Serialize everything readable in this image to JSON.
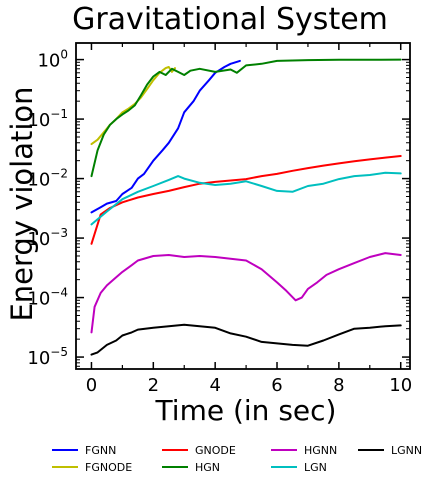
{
  "chart_data": {
    "type": "line",
    "title": "Gravitational System",
    "xlabel": "Time (in sec)",
    "ylabel": "Energy violation",
    "xlim": [
      -0.5,
      10.3
    ],
    "ylim": [
      6.3e-06,
      1.9
    ],
    "yscale": "log",
    "xticks": [
      0,
      2,
      4,
      6,
      8,
      10
    ],
    "xtick_labels": [
      "0",
      "2",
      "4",
      "6",
      "8",
      "10"
    ],
    "yticks": [
      1e-05,
      0.0001,
      0.001,
      0.01,
      0.1,
      1
    ],
    "ytick_labels": [
      {
        "base": "10",
        "exp": "−5"
      },
      {
        "base": "10",
        "exp": "−4"
      },
      {
        "base": "10",
        "exp": "−3"
      },
      {
        "base": "10",
        "exp": "−2"
      },
      {
        "base": "10",
        "exp": "−1"
      },
      {
        "base": "10",
        "exp": "0"
      }
    ],
    "grid": false,
    "legend_position": "bottom",
    "series": [
      {
        "name": "FGNN",
        "color": "#0000ff",
        "x": [
          0,
          0.3,
          0.5,
          0.8,
          1.0,
          1.3,
          1.5,
          1.7,
          2.0,
          2.3,
          2.5,
          2.8,
          3.0,
          3.3,
          3.5,
          3.8,
          4.0,
          4.3,
          4.5,
          4.8
        ],
        "y": [
          0.0027,
          0.0033,
          0.0038,
          0.0042,
          0.0055,
          0.007,
          0.01,
          0.012,
          0.02,
          0.03,
          0.04,
          0.07,
          0.13,
          0.2,
          0.3,
          0.45,
          0.6,
          0.75,
          0.85,
          0.95
        ]
      },
      {
        "name": "FGNODE",
        "color": "#bfbf00",
        "x": [
          0,
          0.2,
          0.4,
          0.6,
          0.8,
          1.0,
          1.2,
          1.4,
          1.6,
          1.8,
          2.0,
          2.2,
          2.4,
          2.5,
          2.6,
          2.7
        ],
        "y": [
          0.038,
          0.045,
          0.06,
          0.08,
          0.1,
          0.13,
          0.15,
          0.18,
          0.23,
          0.32,
          0.45,
          0.6,
          0.72,
          0.75,
          0.62,
          0.72
        ]
      },
      {
        "name": "GNODE",
        "color": "#ff0000",
        "x": [
          0,
          0.3,
          0.6,
          1.0,
          1.5,
          2.0,
          2.5,
          3.0,
          3.5,
          4.0,
          4.5,
          5.0,
          5.5,
          6.0,
          6.5,
          7.0,
          7.5,
          8.0,
          8.5,
          9.0,
          9.5,
          10.0
        ],
        "y": [
          0.0008,
          0.0025,
          0.0032,
          0.004,
          0.0048,
          0.0055,
          0.0062,
          0.0072,
          0.0082,
          0.0088,
          0.0093,
          0.0098,
          0.011,
          0.012,
          0.0135,
          0.015,
          0.0165,
          0.018,
          0.0195,
          0.021,
          0.0225,
          0.024
        ]
      },
      {
        "name": "HGN",
        "color": "#008000",
        "x": [
          0,
          0.2,
          0.4,
          0.6,
          0.8,
          1.0,
          1.2,
          1.4,
          1.6,
          1.8,
          2.0,
          2.2,
          2.4,
          2.6,
          2.8,
          3.0,
          3.2,
          3.5,
          4.0,
          4.5,
          4.7,
          5.0,
          5.5,
          6.0,
          7.0,
          8.0,
          9.0,
          10.0
        ],
        "y": [
          0.011,
          0.03,
          0.055,
          0.08,
          0.1,
          0.12,
          0.14,
          0.17,
          0.25,
          0.38,
          0.52,
          0.62,
          0.55,
          0.7,
          0.62,
          0.55,
          0.65,
          0.7,
          0.62,
          0.68,
          0.6,
          0.8,
          0.85,
          0.95,
          0.98,
          0.99,
          0.99,
          1.0
        ]
      },
      {
        "name": "HGNN",
        "color": "#bf00bf",
        "x": [
          0,
          0.1,
          0.3,
          0.5,
          0.8,
          1.0,
          1.3,
          1.5,
          2.0,
          2.5,
          3.0,
          3.5,
          4.0,
          4.5,
          5.0,
          5.5,
          6.0,
          6.3,
          6.6,
          6.8,
          7.0,
          7.3,
          7.6,
          8.0,
          8.5,
          9.0,
          9.5,
          10.0
        ],
        "y": [
          2.6e-05,
          7e-05,
          0.00012,
          0.00016,
          0.00022,
          0.00027,
          0.00035,
          0.00042,
          0.0005,
          0.00052,
          0.00048,
          0.0005,
          0.00048,
          0.00045,
          0.00042,
          0.0003,
          0.00018,
          0.00013,
          9e-05,
          0.0001,
          0.00014,
          0.00018,
          0.00024,
          0.0003,
          0.00038,
          0.00048,
          0.00056,
          0.00052
        ]
      },
      {
        "name": "LGN",
        "color": "#00bfbf",
        "x": [
          0,
          0.5,
          1.0,
          1.5,
          2.0,
          2.5,
          2.8,
          3.0,
          3.5,
          4.0,
          4.5,
          5.0,
          5.5,
          6.0,
          6.5,
          7.0,
          7.5,
          8.0,
          8.5,
          9.0,
          9.5,
          10.0
        ],
        "y": [
          0.0017,
          0.0028,
          0.0045,
          0.006,
          0.0075,
          0.0095,
          0.011,
          0.01,
          0.0085,
          0.0078,
          0.0082,
          0.009,
          0.0075,
          0.0062,
          0.006,
          0.0075,
          0.0082,
          0.0098,
          0.011,
          0.0115,
          0.0125,
          0.0122
        ]
      },
      {
        "name": "LGNN",
        "color": "#000000",
        "x": [
          0,
          0.2,
          0.5,
          0.8,
          1.0,
          1.3,
          1.5,
          2.0,
          2.5,
          3.0,
          3.5,
          4.0,
          4.5,
          5.0,
          5.5,
          6.0,
          6.5,
          7.0,
          7.5,
          8.0,
          8.5,
          9.0,
          9.5,
          10.0
        ],
        "y": [
          1.1e-05,
          1.2e-05,
          1.6e-05,
          1.9e-05,
          2.3e-05,
          2.6e-05,
          2.9e-05,
          3.1e-05,
          3.3e-05,
          3.5e-05,
          3.3e-05,
          3.1e-05,
          2.5e-05,
          2.2e-05,
          1.8e-05,
          1.7e-05,
          1.6e-05,
          1.55e-05,
          1.9e-05,
          2.4e-05,
          3e-05,
          3.1e-05,
          3.3e-05,
          3.4e-05
        ]
      }
    ]
  }
}
